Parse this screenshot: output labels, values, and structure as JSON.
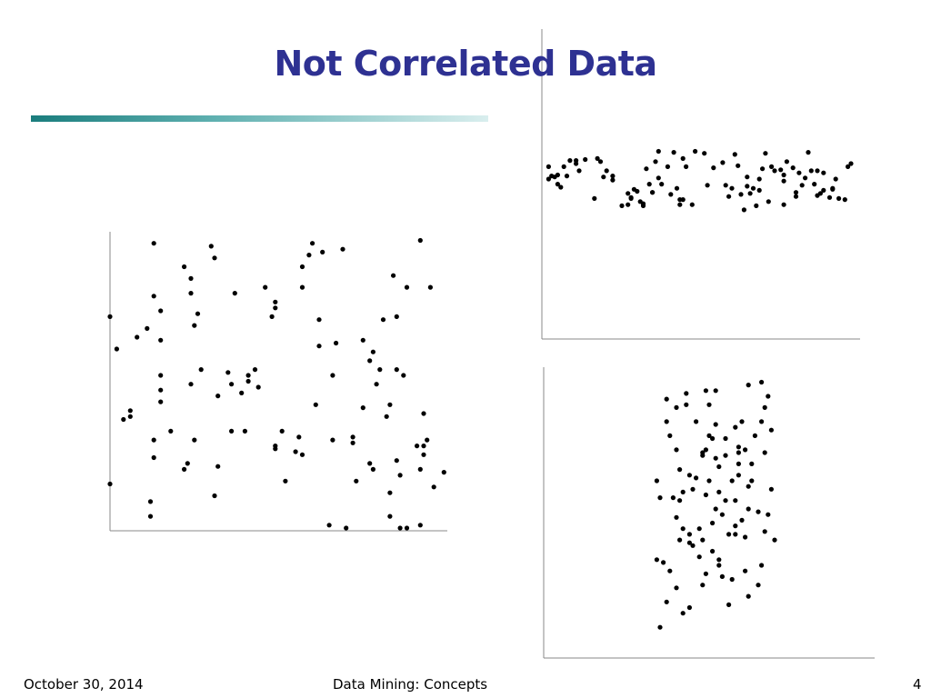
{
  "slide": {
    "title": "Not Correlated Data",
    "footer_date": "October 30, 2014",
    "footer_center": "Data Mining: Concepts",
    "page_number": "4"
  },
  "colors": {
    "title": "#2e3192",
    "rule_start": "#1a7d7d",
    "rule_end": "#d9eeee",
    "points": "#000000",
    "axes": "#888888"
  },
  "chart_data": [
    {
      "type": "scatter",
      "title": "",
      "xlabel": "",
      "ylabel": "",
      "xlim": [
        0,
        100
      ],
      "ylim": [
        0,
        100
      ],
      "grid": false,
      "series": [
        {
          "x": [
            0,
            0,
            2,
            4,
            6,
            6,
            8,
            11,
            12,
            12,
            13,
            13,
            13,
            13,
            15,
            15,
            15,
            15,
            15,
            18,
            22,
            22,
            23,
            24,
            24,
            24,
            25,
            25,
            26,
            27,
            30,
            31,
            31,
            32,
            32,
            35,
            36,
            36,
            37,
            39,
            40,
            41,
            41,
            43,
            44,
            46,
            48,
            49,
            49,
            49,
            49,
            51,
            52,
            55,
            56,
            57,
            57,
            57,
            59,
            60,
            61,
            62,
            62,
            63,
            65,
            66,
            66,
            67,
            69,
            70,
            72,
            72,
            73,
            75,
            75,
            77,
            77,
            78,
            78,
            79,
            80,
            81,
            82,
            83,
            83,
            83,
            84,
            85,
            85,
            85,
            86,
            86,
            87,
            88,
            88,
            91,
            92,
            92,
            92,
            93,
            93,
            93,
            94,
            95,
            96,
            99
          ],
          "y": [
            15,
            72,
            61,
            37,
            40,
            38,
            65,
            68,
            4,
            9,
            79,
            24,
            30,
            97,
            52,
            64,
            74,
            43,
            47,
            33,
            89,
            20,
            22,
            49,
            80,
            85,
            30,
            69,
            73,
            54,
            96,
            92,
            11,
            45,
            21,
            53,
            33,
            49,
            80,
            46,
            33,
            52,
            50,
            54,
            48,
            82,
            72,
            77,
            75,
            28,
            27,
            33,
            16,
            26,
            31,
            82,
            89,
            25,
            93,
            97,
            42,
            71,
            62,
            94,
            1,
            52,
            30,
            63,
            95,
            0,
            29,
            31,
            16,
            64,
            41,
            22,
            57,
            60,
            20,
            49,
            54,
            71,
            38,
            42,
            4,
            12,
            86,
            72,
            23,
            54,
            0,
            18,
            52,
            82,
            0,
            28,
            98,
            20,
            1,
            28,
            39,
            25,
            30,
            82,
            14,
            19
          ]
        }
      ]
    },
    {
      "type": "scatter",
      "title": "",
      "xlabel": "",
      "ylabel": "",
      "xlim": [
        0,
        100
      ],
      "ylim": [
        0,
        100
      ],
      "grid": false,
      "series": [
        {
          "x": [
            1,
            1,
            2,
            3,
            4,
            4,
            5,
            6,
            7,
            8,
            10,
            10,
            11,
            13,
            16,
            17,
            18,
            19,
            20,
            22,
            22,
            25,
            27,
            27,
            28,
            28,
            29,
            30,
            31,
            32,
            32,
            33,
            34,
            35,
            35,
            36,
            37,
            37,
            38,
            40,
            41,
            42,
            43,
            44,
            44,
            45,
            45,
            46,
            48,
            49,
            52,
            53,
            55,
            58,
            59,
            60,
            61,
            62,
            63,
            64,
            65,
            66,
            66,
            67,
            68,
            69,
            70,
            70,
            71,
            72,
            73,
            74,
            75,
            77,
            78,
            78,
            78,
            79,
            81,
            82,
            82,
            83,
            84,
            85,
            86,
            87,
            88,
            89,
            89,
            90,
            91,
            91,
            93,
            94,
            94,
            95,
            96,
            98,
            99,
            100
          ],
          "y": [
            54,
            66,
            57,
            56,
            49,
            58,
            46,
            66,
            57,
            72,
            72,
            69,
            62,
            73,
            35,
            74,
            71,
            56,
            62,
            53,
            57,
            28,
            40,
            29,
            35,
            36,
            44,
            42,
            32,
            30,
            28,
            64,
            49,
            41,
            41,
            71,
            81,
            55,
            49,
            66,
            39,
            80,
            45,
            34,
            29,
            34,
            74,
            66,
            29,
            81,
            79,
            48,
            65,
            70,
            48,
            37,
            45,
            78,
            67,
            39,
            24,
            56,
            47,
            40,
            45,
            28,
            54,
            43,
            64,
            79,
            32,
            66,
            62,
            63,
            58,
            52,
            29,
            71,
            65,
            41,
            37,
            60,
            48,
            55,
            80,
            62,
            49,
            62,
            38,
            40,
            43,
            60,
            36,
            45,
            44,
            54,
            35,
            34,
            66,
            69
          ]
        }
      ]
    },
    {
      "type": "scatter",
      "title": "",
      "xlabel": "",
      "ylabel": "",
      "xlim": [
        0,
        100
      ],
      "ylim": [
        0,
        100
      ],
      "grid": false,
      "series": [
        {
          "x": [
            34,
            34,
            35,
            35,
            36,
            37,
            37,
            37,
            38,
            38,
            39,
            40,
            40,
            40,
            40,
            41,
            41,
            41,
            42,
            42,
            42,
            43,
            43,
            44,
            44,
            44,
            44,
            45,
            45,
            46,
            46,
            47,
            47,
            48,
            48,
            48,
            48,
            49,
            49,
            49,
            49,
            50,
            50,
            50,
            51,
            51,
            51,
            52,
            52,
            52,
            52,
            53,
            53,
            53,
            53,
            54,
            54,
            55,
            55,
            55,
            56,
            56,
            57,
            57,
            58,
            58,
            58,
            58,
            59,
            59,
            59,
            59,
            60,
            60,
            61,
            61,
            61,
            62,
            62,
            62,
            62,
            63,
            63,
            64,
            65,
            65,
            66,
            66,
            66,
            67,
            67,
            67,
            68,
            68,
            69,
            69,
            70
          ],
          "y": [
            32,
            60,
            54,
            8,
            31,
            89,
            81,
            17,
            76,
            28,
            54,
            71,
            86,
            47,
            22,
            64,
            53,
            39,
            43,
            56,
            13,
            87,
            91,
            15,
            41,
            38,
            62,
            37,
            57,
            81,
            61,
            43,
            33,
            70,
            69,
            39,
            23,
            92,
            71,
            55,
            27,
            87,
            76,
            60,
            75,
            45,
            35,
            68,
            50,
            80,
            92,
            65,
            30,
            56,
            32,
            48,
            26,
            75,
            69,
            53,
            41,
            16,
            60,
            25,
            44,
            41,
            53,
            79,
            72,
            62,
            66,
            70,
            81,
            46,
            40,
            71,
            28,
            94,
            50,
            58,
            19,
            60,
            66,
            76,
            23,
            49,
            81,
            95,
            30,
            70,
            42,
            86,
            48,
            90,
            57,
            78,
            39
          ]
        }
      ]
    }
  ]
}
